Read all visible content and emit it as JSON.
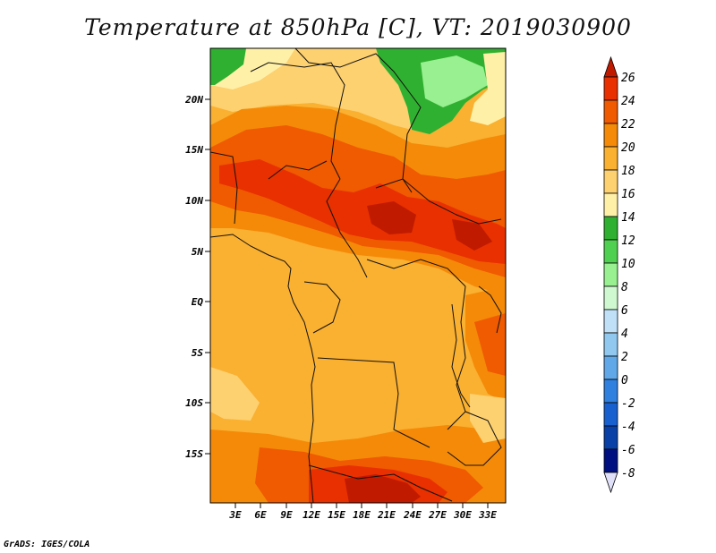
{
  "title": "Temperature at 850hPa [C], VT: 2019030900",
  "footer": "GrADS: IGES/COLA",
  "lat_labels": [
    "20N",
    "15N",
    "10N",
    "5N",
    "EQ",
    "5S",
    "10S",
    "15S"
  ],
  "lon_labels": [
    "3E",
    "6E",
    "9E",
    "12E",
    "15E",
    "18E",
    "21E",
    "24E",
    "27E",
    "30E",
    "33E"
  ],
  "colorbar": {
    "labels": [
      "26",
      "24",
      "22",
      "20",
      "18",
      "16",
      "14",
      "12",
      "10",
      "8",
      "6",
      "4",
      "2",
      "0",
      "-2",
      "-4",
      "-6",
      "-8"
    ],
    "colors": [
      "#c01a00",
      "#e83000",
      "#f05a00",
      "#f58a08",
      "#fab030",
      "#fdd070",
      "#fff0a8",
      "#30b030",
      "#50d050",
      "#98f090",
      "#d0f8d0",
      "#c0e0f8",
      "#90c8f0",
      "#60a8e8",
      "#3080e0",
      "#1860d0",
      "#0840a8",
      "#001080",
      "#e0e0f8"
    ]
  },
  "map": {
    "variable": "Temperature at 850hPa",
    "units": "C",
    "valid_time": "2019030900"
  }
}
